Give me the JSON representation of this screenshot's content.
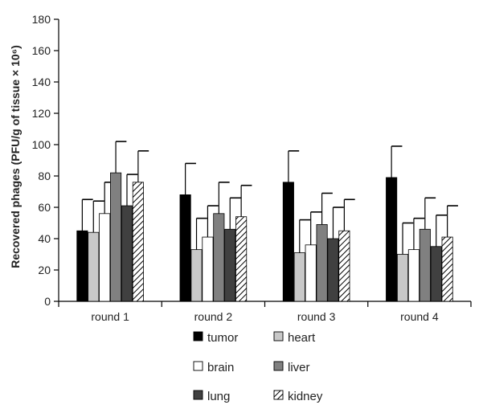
{
  "chart_data": {
    "type": "bar",
    "ylabel": "Recovered phages (PFU/g of tissue × 10⁶)",
    "ylim": [
      0,
      180
    ],
    "yticks": [
      0,
      20,
      40,
      60,
      80,
      100,
      120,
      140,
      160,
      180
    ],
    "categories": [
      "round 1",
      "round 2",
      "round 3",
      "round 4"
    ],
    "error_bars": "upper",
    "legend_position": "bottom",
    "series": [
      {
        "name": "tumor",
        "fill": "#000000",
        "values": [
          45,
          68,
          76,
          79
        ],
        "errors": [
          20,
          20,
          20,
          20
        ]
      },
      {
        "name": "heart",
        "fill": "#c8c8c8",
        "values": [
          44,
          33,
          31,
          30
        ],
        "errors": [
          20,
          20,
          21,
          20
        ]
      },
      {
        "name": "brain",
        "fill": "#ffffff",
        "values": [
          56,
          41,
          36,
          33
        ],
        "errors": [
          20,
          20,
          21,
          20
        ]
      },
      {
        "name": "liver",
        "fill": "#808080",
        "values": [
          82,
          56,
          49,
          46
        ],
        "errors": [
          20,
          20,
          20,
          20
        ]
      },
      {
        "name": "lung",
        "fill": "#404040",
        "values": [
          61,
          46,
          40,
          35
        ],
        "errors": [
          20,
          20,
          20,
          20
        ]
      },
      {
        "name": "kidney",
        "fill": "hatch",
        "values": [
          76,
          54,
          45,
          41
        ],
        "errors": [
          20,
          20,
          20,
          20
        ]
      }
    ]
  }
}
